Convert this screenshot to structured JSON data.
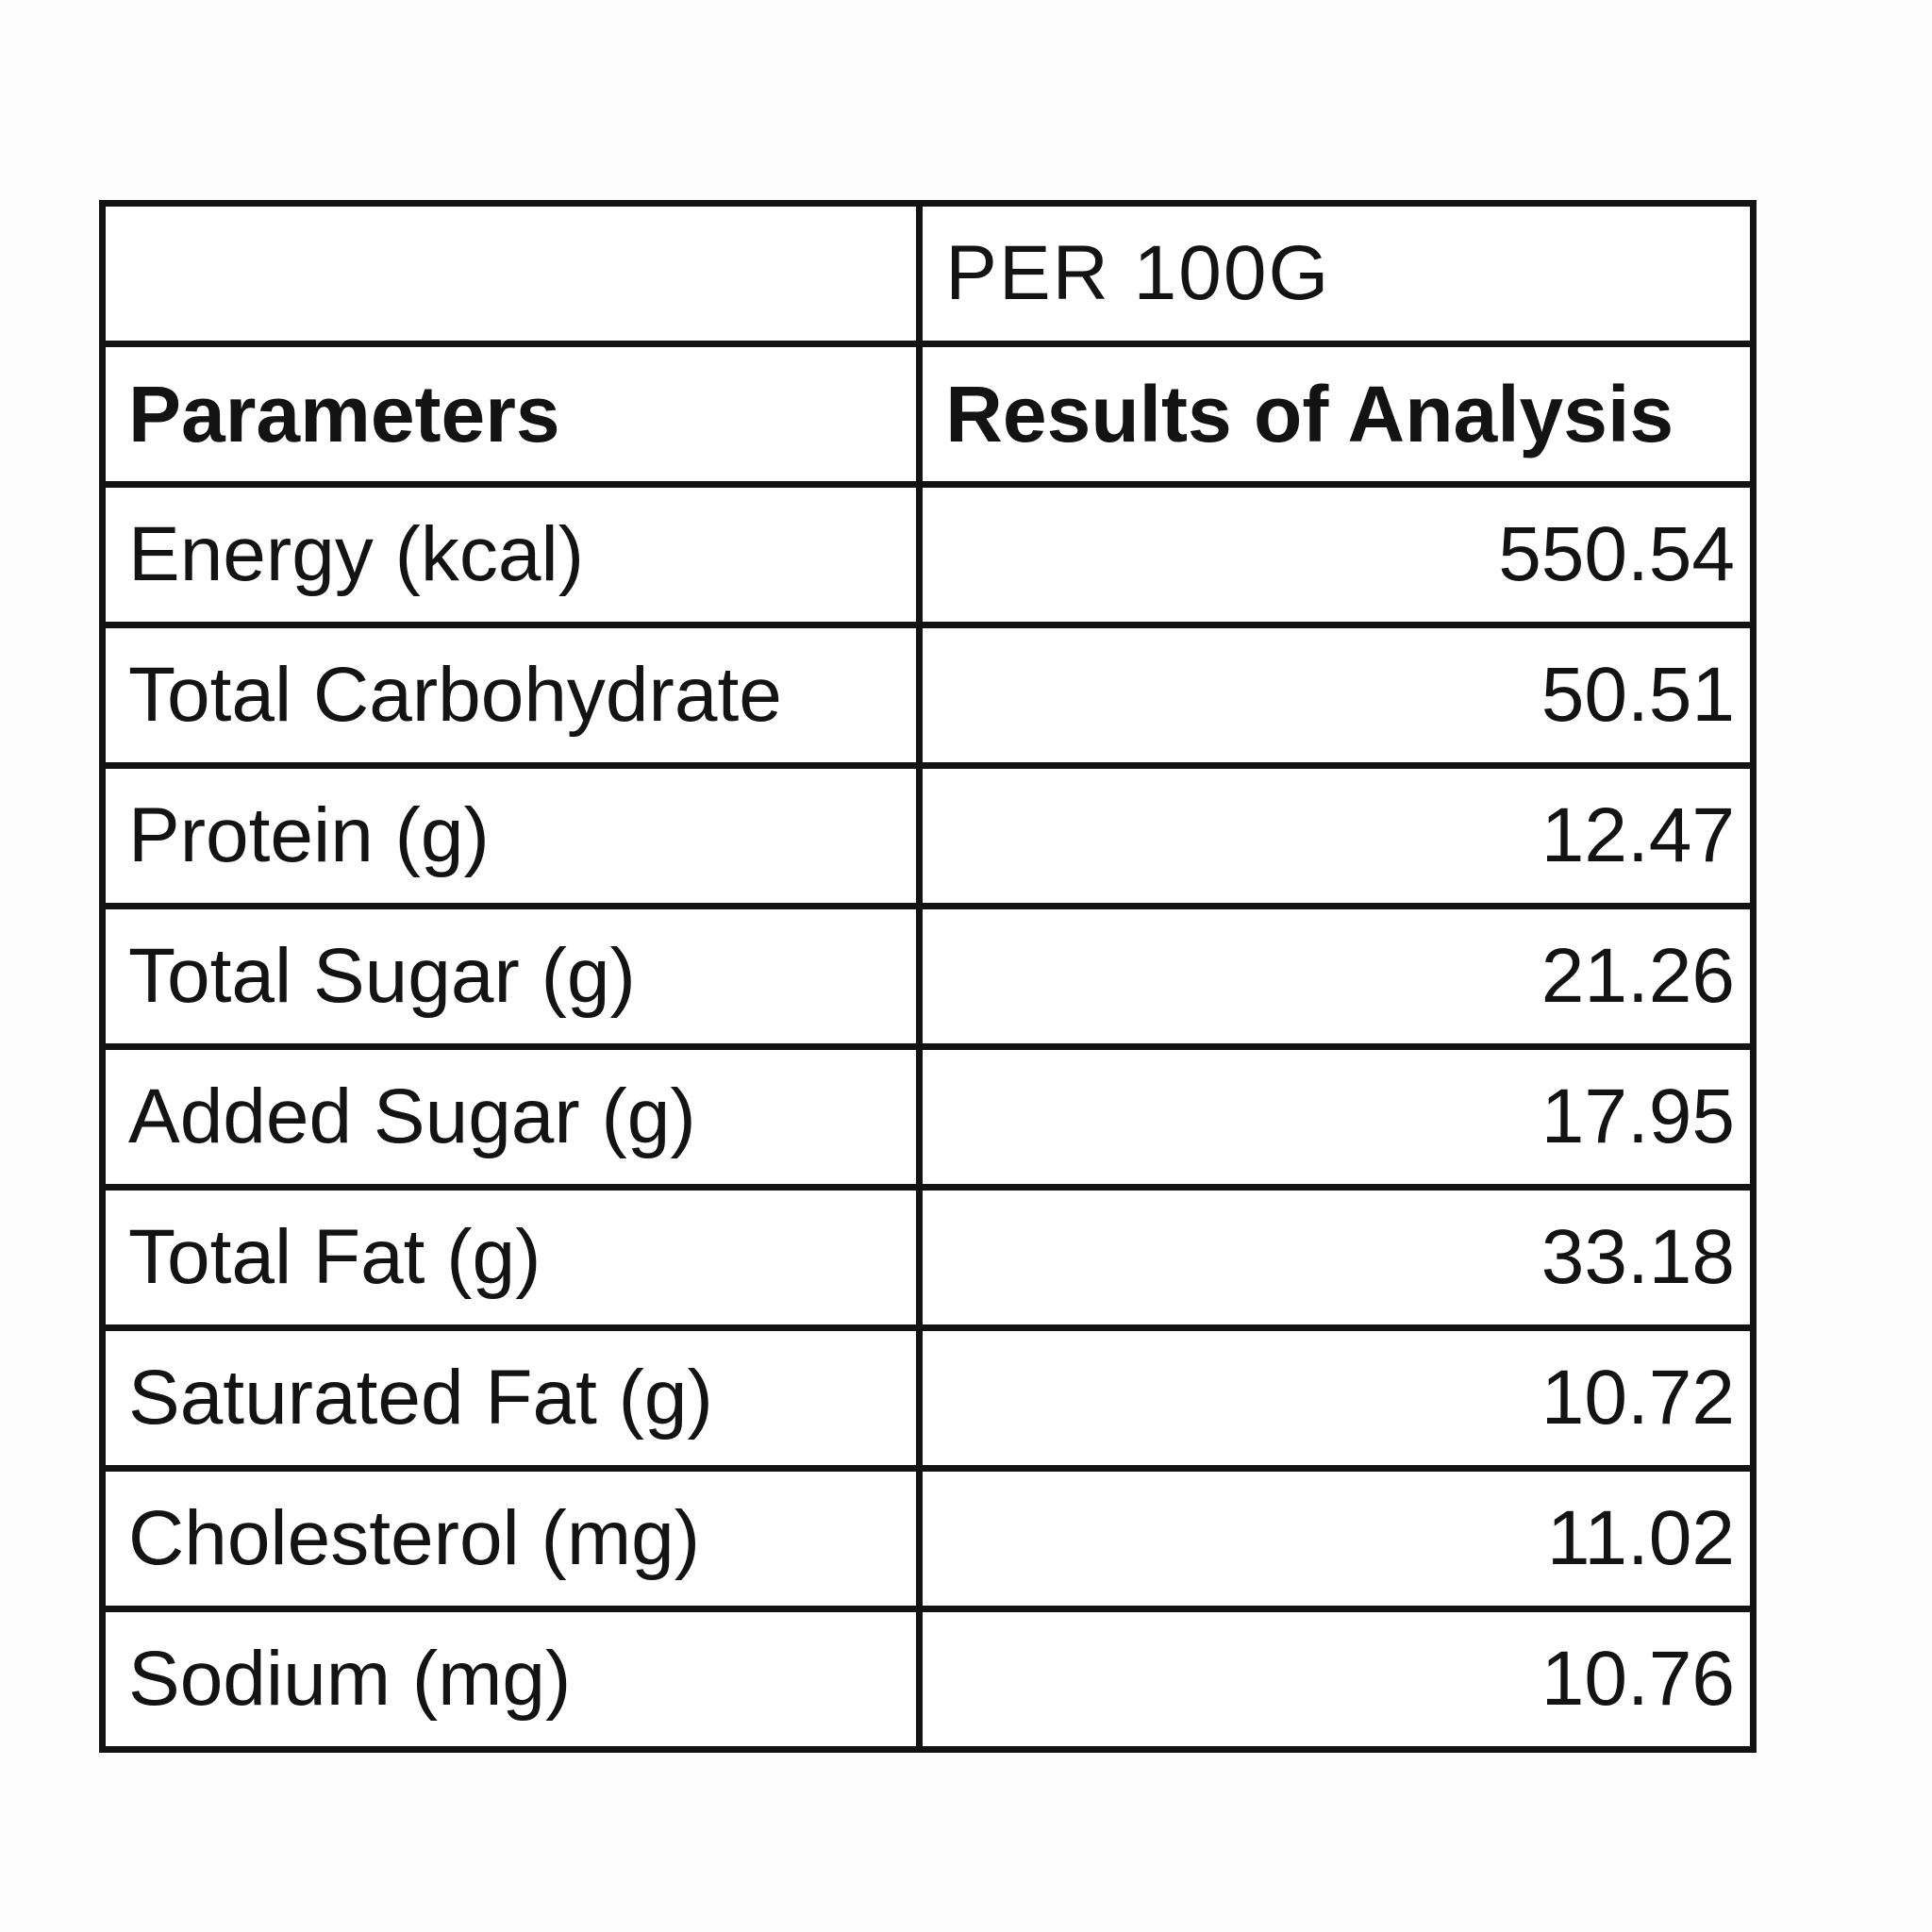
{
  "page": {
    "background_color": "#fdfdfd",
    "border_color": "#131313"
  },
  "table": {
    "unit_header": "PER 100G",
    "column_headers": {
      "parameters": "Parameters",
      "results": "Results of Analysis"
    },
    "rows": [
      {
        "label": "Energy (kcal)",
        "value": "550.54"
      },
      {
        "label": "Total Carbohydrate",
        "value": "50.51"
      },
      {
        "label": "Protein (g)",
        "value": "12.47"
      },
      {
        "label": "Total Sugar (g)",
        "value": "21.26"
      },
      {
        "label": "Added Sugar (g)",
        "value": "17.95"
      },
      {
        "label": "Total Fat (g)",
        "value": "33.18"
      },
      {
        "label": "Saturated Fat (g)",
        "value": "10.72"
      },
      {
        "label": "Cholesterol (mg)",
        "value": "11.02"
      },
      {
        "label": "Sodium (mg)",
        "value": "10.76"
      }
    ]
  }
}
